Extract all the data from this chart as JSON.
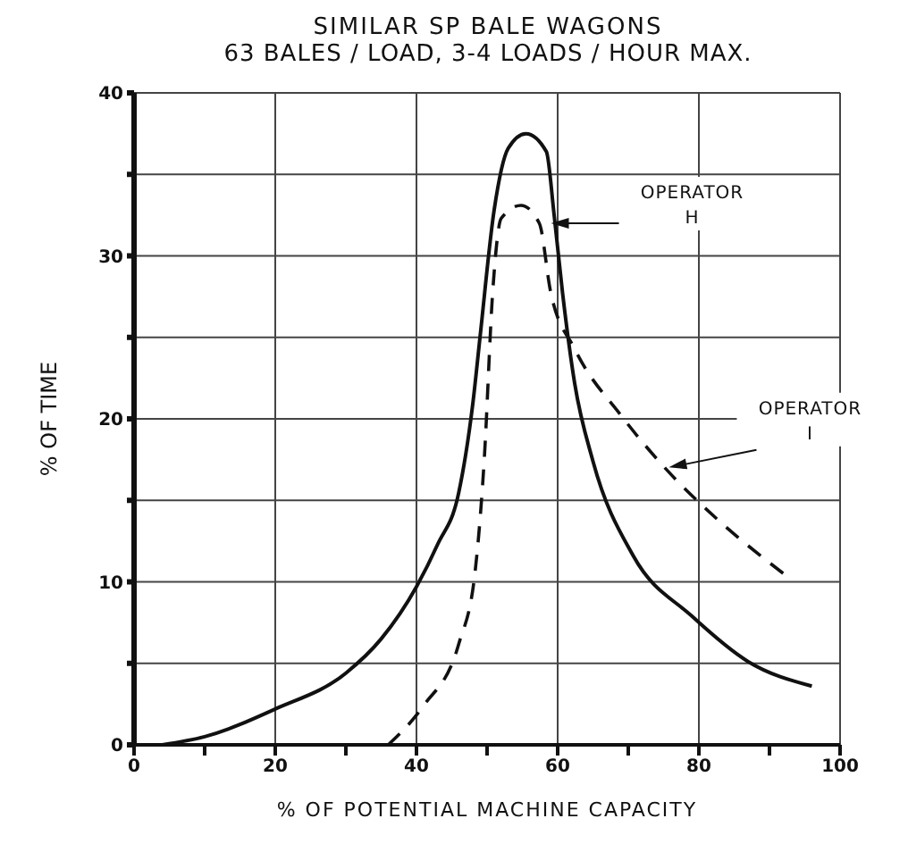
{
  "chart_data": {
    "type": "line",
    "title": "SIMILAR SP BALE WAGONS",
    "subtitle": "63 BALES / LOAD, 3-4 LOADS / HOUR MAX.",
    "xlabel": "% OF POTENTIAL MACHINE CAPACITY",
    "ylabel": "% OF TIME",
    "xlim": [
      0,
      100
    ],
    "xticks": [
      0,
      {
        "value": 10,
        "label": null
      },
      20,
      {
        "value": 30,
        "label": null
      },
      40,
      {
        "value": 50,
        "label": null
      },
      60,
      {
        "value": 70,
        "label": null
      },
      80,
      {
        "value": 90,
        "label": null
      },
      100
    ],
    "ylim": [
      0,
      40
    ],
    "yticks": [
      0,
      {
        "value": 5,
        "label": null
      },
      10,
      {
        "value": 15,
        "label": null
      },
      20,
      {
        "value": 25,
        "label": null
      },
      30,
      {
        "value": 35,
        "label": null
      },
      40
    ],
    "grid": true,
    "marker": "none",
    "series": [
      {
        "color": "#111111",
        "line_style": "solid",
        "x": [
          4,
          10,
          20,
          30,
          35,
          40,
          43,
          46,
          48,
          49,
          51,
          53,
          55.5,
          58.4,
          59.5,
          60.7,
          62.4,
          65,
          70.7,
          79,
          87,
          96
        ],
        "values": [
          0,
          0.5,
          2.2,
          4.4,
          6.5,
          9.7,
          12.3,
          15.5,
          21,
          25,
          32.8,
          36.6,
          37.5,
          36.4,
          32.5,
          27.7,
          22.2,
          17.4,
          11.6,
          7.9,
          5.1,
          3.6
        ]
      },
      {
        "color": "#111111",
        "line_style": "dashed",
        "x": [
          36,
          41,
          46,
          48.3,
          49.6,
          50.8,
          52,
          54.8,
          57.4,
          59,
          62.4,
          69,
          75.6,
          82.2,
          92.6
        ],
        "values": [
          0,
          2.4,
          6.2,
          10.6,
          17.5,
          27.8,
          32.3,
          33.1,
          32,
          27.8,
          24.3,
          20.2,
          16.8,
          14,
          10.3
        ]
      }
    ],
    "annotations": [
      {
        "text": "OPERATOR H",
        "x": 58.8,
        "y": 32
      },
      {
        "text": "OPERATOR I",
        "x": 75.5,
        "y": 17
      }
    ]
  }
}
